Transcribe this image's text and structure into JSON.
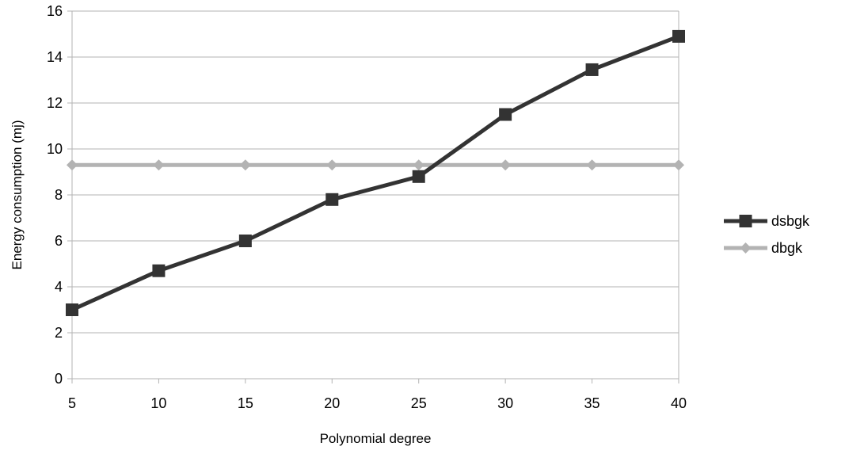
{
  "chart_data": {
    "type": "line",
    "title": "",
    "xlabel": "Polynomial degree",
    "ylabel": "Energy consumption (mj)",
    "x": [
      5,
      10,
      15,
      20,
      25,
      30,
      35,
      40
    ],
    "x_tick_labels": [
      "5",
      "10",
      "15",
      "20",
      "25",
      "30",
      "35",
      "40"
    ],
    "y_tick_labels": [
      "0",
      "2",
      "4",
      "6",
      "8",
      "10",
      "12",
      "14",
      "16"
    ],
    "xlim": [
      5,
      40
    ],
    "ylim": [
      0,
      16
    ],
    "y_ticks": [
      0,
      2,
      4,
      6,
      8,
      10,
      12,
      14,
      16
    ],
    "grid": "horizontal",
    "legend_position": "right",
    "series": [
      {
        "name": "dsbgk",
        "values": [
          3.0,
          4.7,
          6.0,
          7.8,
          8.8,
          11.5,
          13.45,
          14.9
        ],
        "color": "#333333",
        "marker": "square"
      },
      {
        "name": "dbgk",
        "values": [
          9.3,
          9.3,
          9.3,
          9.3,
          9.3,
          9.3,
          9.3,
          9.3
        ],
        "color": "#b3b3b3",
        "marker": "diamond"
      }
    ]
  }
}
